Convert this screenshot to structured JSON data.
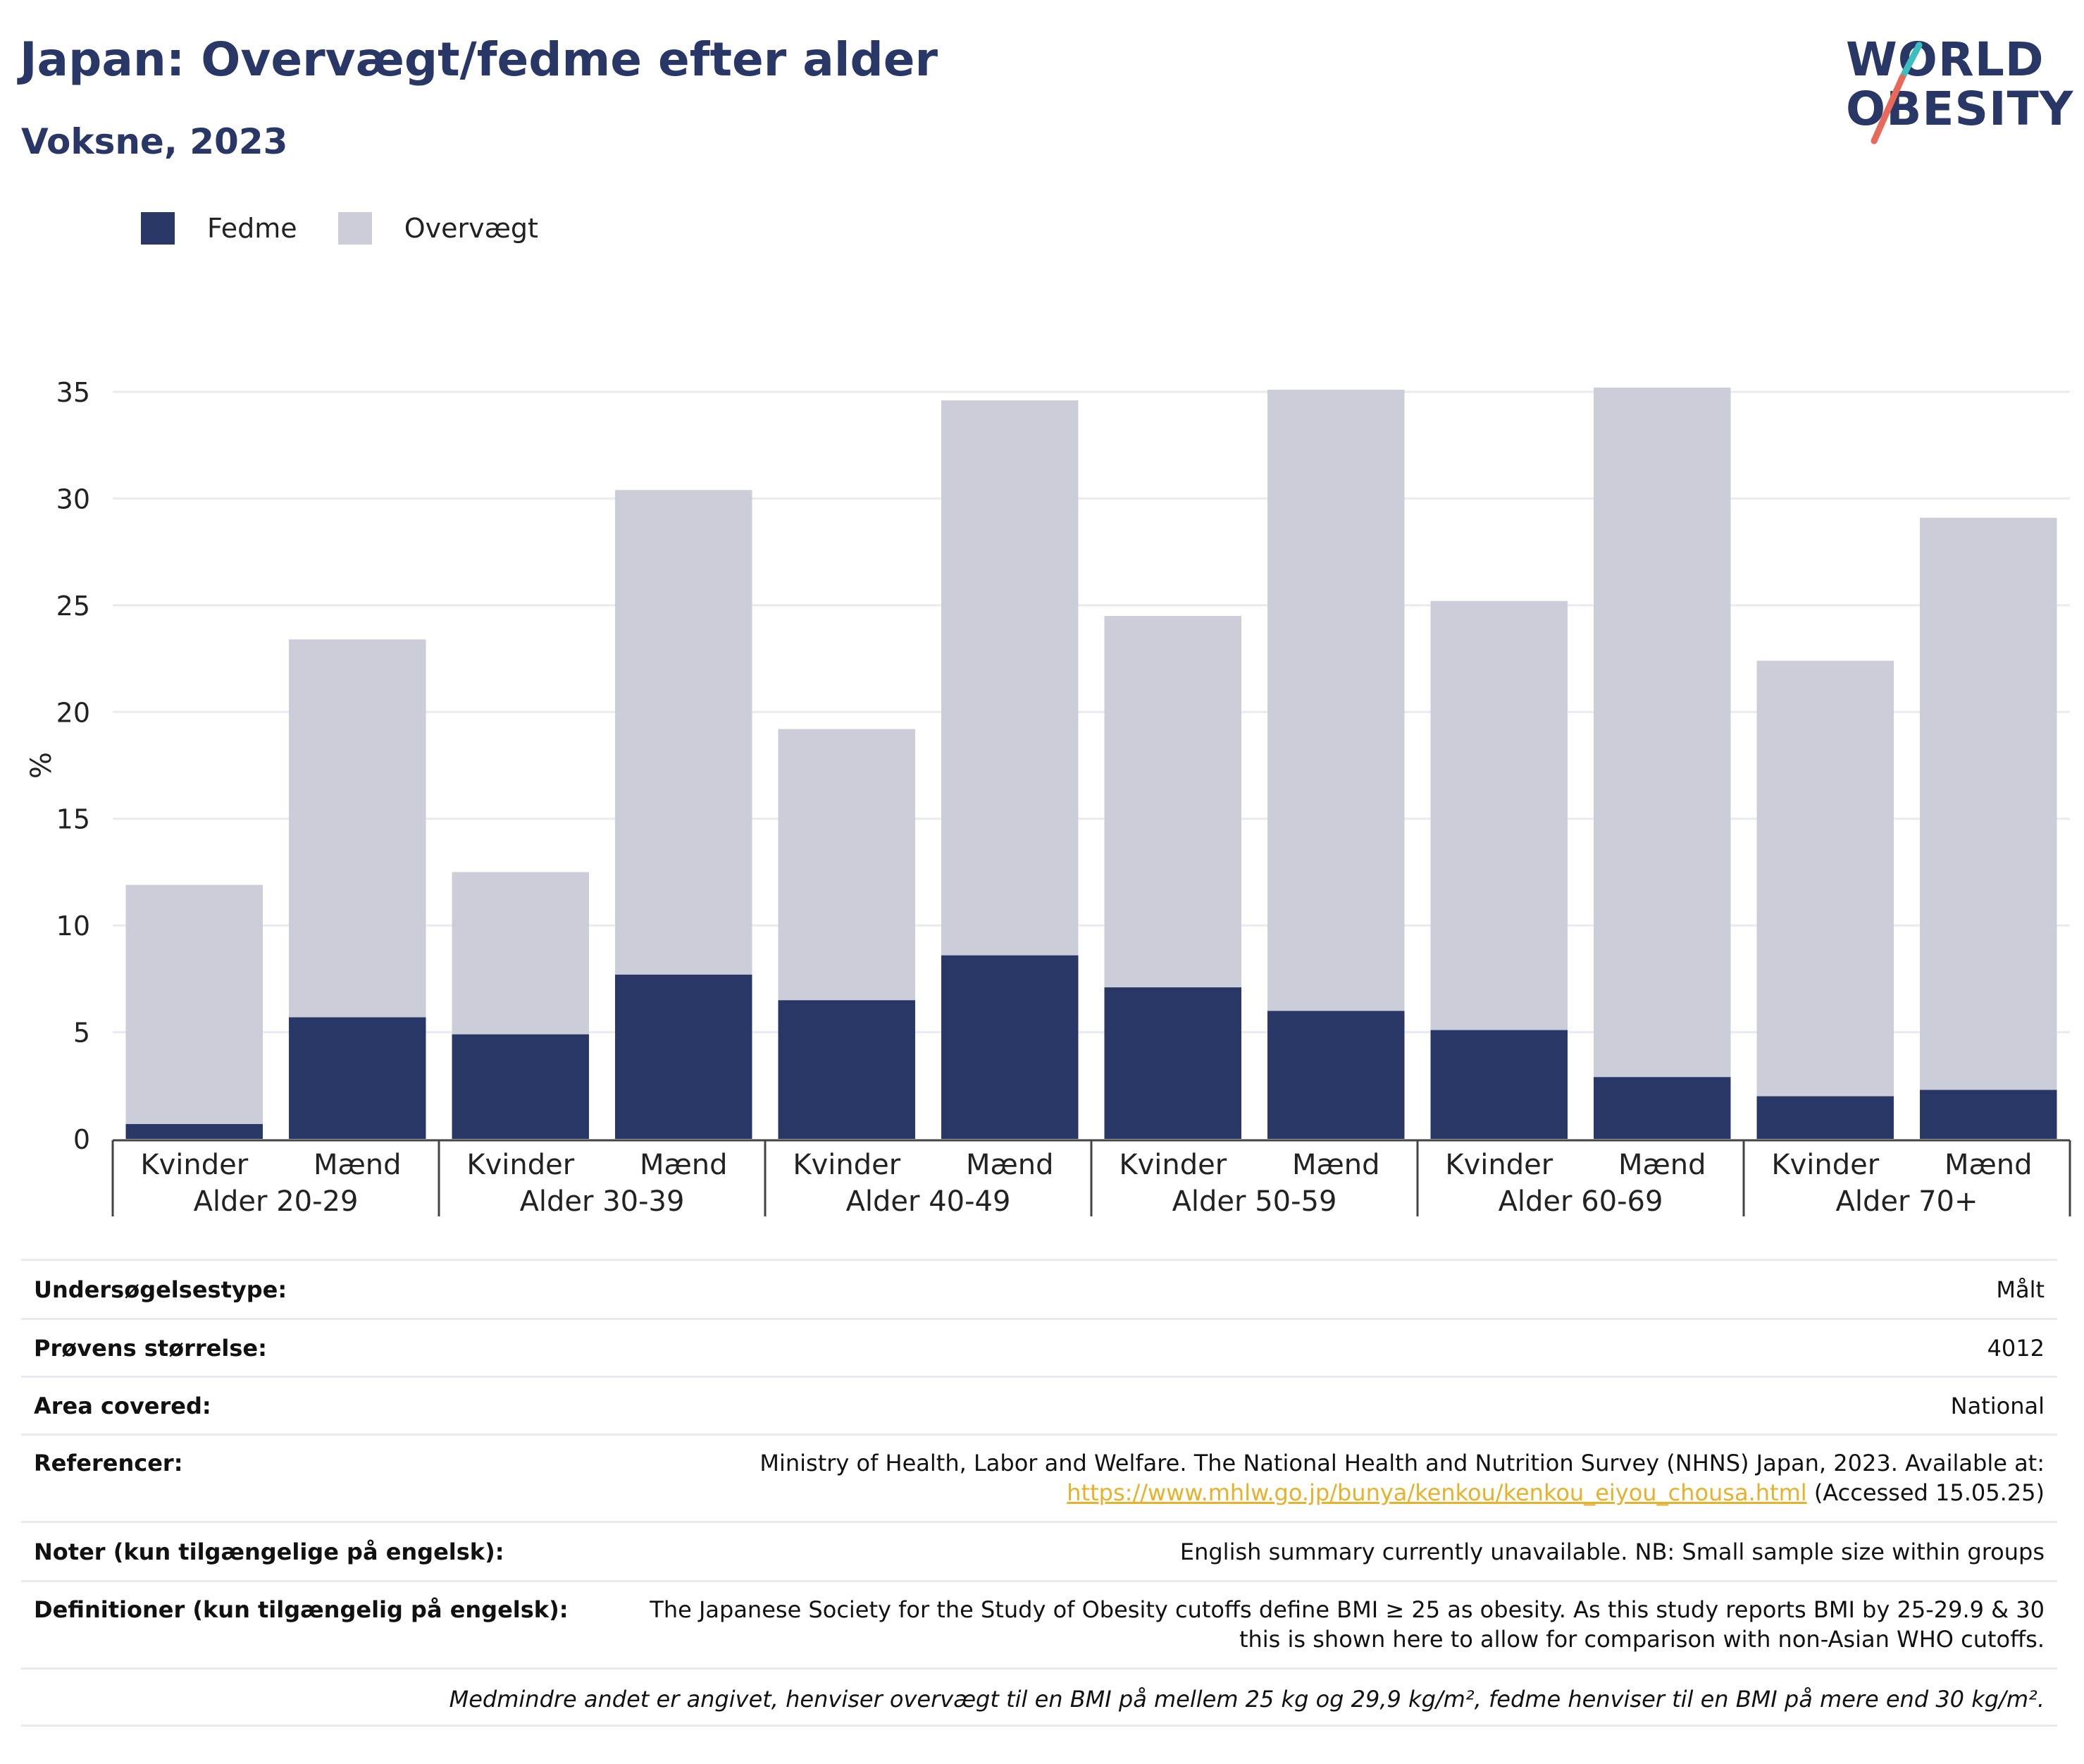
{
  "title": "Japan: Overvægt/fedme efter alder",
  "subtitle": "Voksne, 2023",
  "logo": {
    "line1": "WORLD",
    "line2": "OBESITY",
    "accent_teal": "#3bbfbf",
    "accent_coral": "#e8695a"
  },
  "colors": {
    "fedme": "#283765",
    "overvaegt": "#cbcdd9",
    "text": "#283765"
  },
  "chart_data": {
    "type": "bar",
    "stacked": true,
    "ylabel": "%",
    "ylim": [
      0,
      35
    ],
    "yticks": [
      0,
      5,
      10,
      15,
      20,
      25,
      30,
      35
    ],
    "grid": true,
    "legend_position": "top-left",
    "groups": [
      "Alder 20-29",
      "Alder 30-39",
      "Alder 40-49",
      "Alder 50-59",
      "Alder 60-69",
      "Alder 70+"
    ],
    "categories": [
      "Kvinder",
      "Mænd",
      "Kvinder",
      "Mænd",
      "Kvinder",
      "Mænd",
      "Kvinder",
      "Mænd",
      "Kvinder",
      "Mænd",
      "Kvinder",
      "Mænd"
    ],
    "series": [
      {
        "name": "Fedme",
        "color": "#283765",
        "values": [
          0.7,
          5.7,
          4.9,
          7.7,
          6.5,
          8.6,
          7.1,
          6.0,
          5.1,
          2.9,
          2.0,
          2.3
        ]
      },
      {
        "name": "Overvægt",
        "color": "#cbcdd9",
        "values": [
          11.2,
          17.7,
          7.6,
          22.7,
          12.7,
          26.0,
          17.4,
          29.1,
          20.1,
          32.3,
          20.4,
          26.8
        ]
      }
    ]
  },
  "info": [
    {
      "label": "Undersøgelsestype:",
      "value": "Målt"
    },
    {
      "label": "Prøvens størrelse:",
      "value": "4012"
    },
    {
      "label": "Area covered:",
      "value": "National"
    },
    {
      "label": "Referencer:",
      "value": "Ministry of Health, Labor and Welfare. The National Health and Nutrition Survey (NHNS) Japan, 2023. Available at:",
      "link": "https://www.mhlw.go.jp/bunya/kenkou/kenkou_eiyou_chousa.html",
      "suffix": " (Accessed 15.05.25)"
    },
    {
      "label": "Noter (kun tilgængelige på engelsk):",
      "value": "English summary currently unavailable. NB: Small sample size within groups"
    },
    {
      "label": "Definitioner (kun tilgængelig på engelsk):",
      "value": "The Japanese Society for the Study of Obesity cutoffs define BMI ≥ 25 as obesity. As this study reports BMI by 25-29.9 & 30 this is shown here to allow for comparison with non-Asian WHO cutoffs."
    }
  ],
  "footnote": "Medmindre andet er angivet, henviser overvægt til en BMI på mellem 25 kg og 29,9 kg/m², fedme henviser til en BMI på mere end 30 kg/m²."
}
